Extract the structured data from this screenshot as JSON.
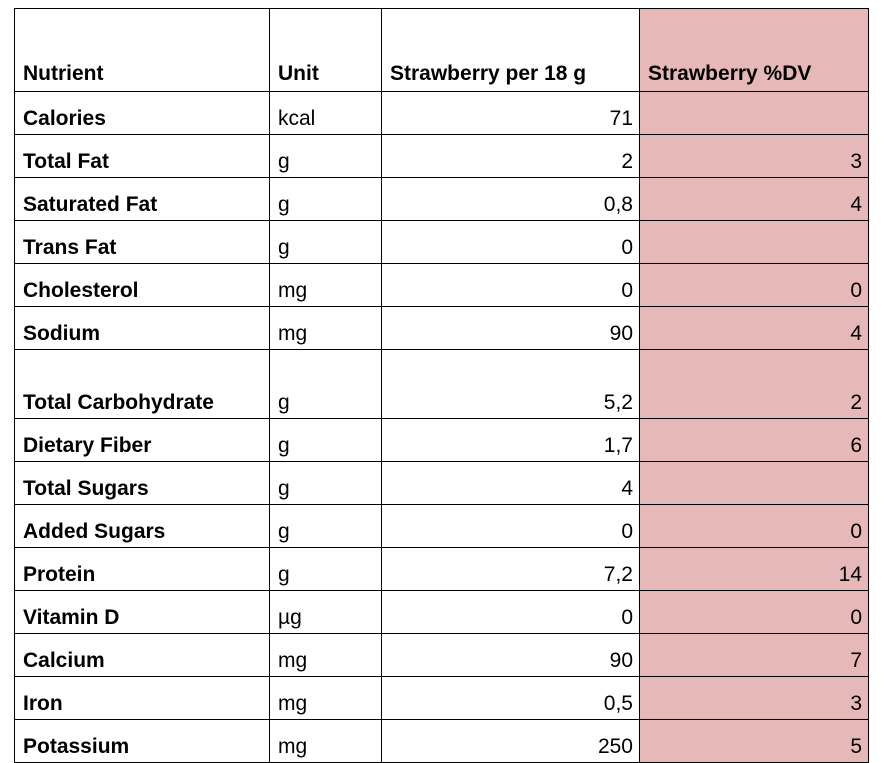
{
  "table": {
    "headers": {
      "nutrient": "Nutrient",
      "unit": "Unit",
      "value": "Strawberry per 18 g",
      "dv": "Strawberry %DV"
    },
    "rows": [
      {
        "nutrient": "Calories",
        "unit": "kcal",
        "value": "71",
        "dv": ""
      },
      {
        "nutrient": "Total Fat",
        "unit": "g",
        "value": "2",
        "dv": "3"
      },
      {
        "nutrient": "Saturated Fat",
        "unit": "g",
        "value": "0,8",
        "dv": "4"
      },
      {
        "nutrient": "Trans Fat",
        "unit": "g",
        "value": "0",
        "dv": ""
      },
      {
        "nutrient": "Cholesterol",
        "unit": "mg",
        "value": "0",
        "dv": "0"
      },
      {
        "nutrient": "Sodium",
        "unit": "mg",
        "value": "90",
        "dv": "4"
      },
      {
        "nutrient": "Total Carbohydrate",
        "unit": "g",
        "value": "5,2",
        "dv": "2"
      },
      {
        "nutrient": "Dietary Fiber",
        "unit": "g",
        "value": "1,7",
        "dv": "6"
      },
      {
        "nutrient": "Total Sugars",
        "unit": "g",
        "value": "4",
        "dv": ""
      },
      {
        "nutrient": "Added Sugars",
        "unit": "g",
        "value": "0",
        "dv": "0"
      },
      {
        "nutrient": "Protein",
        "unit": "g",
        "value": "7,2",
        "dv": "14"
      },
      {
        "nutrient": "Vitamin D",
        "unit": "µg",
        "value": "0",
        "dv": "0"
      },
      {
        "nutrient": "Calcium",
        "unit": "mg",
        "value": "90",
        "dv": "7"
      },
      {
        "nutrient": "Iron",
        "unit": "mg",
        "value": "0,5",
        "dv": "3"
      },
      {
        "nutrient": "Potassium",
        "unit": "mg",
        "value": "250",
        "dv": "5"
      }
    ]
  },
  "colors": {
    "dv_fill": "#e6b8b7",
    "border": "#000000",
    "text": "#000000"
  }
}
